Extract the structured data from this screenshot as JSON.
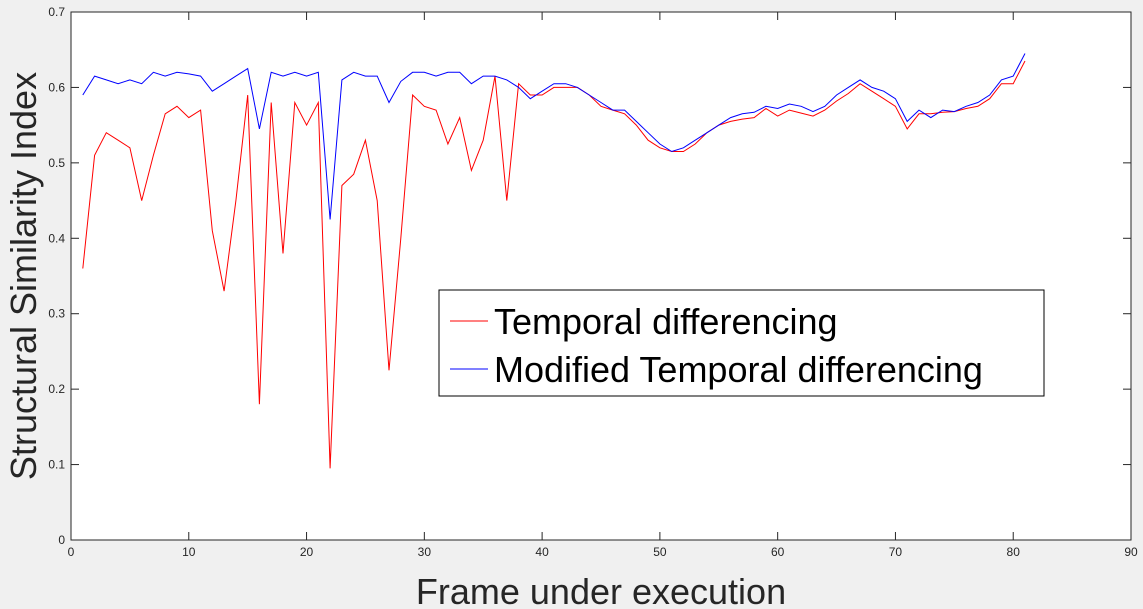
{
  "chart_data": {
    "type": "line",
    "title": "",
    "xlabel": "Frame under execution",
    "ylabel": "Structural Similarity Index",
    "xlim": [
      0,
      90
    ],
    "ylim": [
      0,
      0.7
    ],
    "xticks": [
      0,
      10,
      20,
      30,
      40,
      50,
      60,
      70,
      80,
      90
    ],
    "yticks": [
      0,
      0.1,
      0.2,
      0.3,
      0.4,
      0.5,
      0.6,
      0.7
    ],
    "xtick_labels": [
      "0",
      "10",
      "20",
      "30",
      "40",
      "50",
      "60",
      "70",
      "80",
      "90"
    ],
    "ytick_labels": [
      "0",
      "0.1",
      "0.2",
      "0.3",
      "0.4",
      "0.5",
      "0.6",
      "0.7"
    ],
    "grid": false,
    "legend_position": "center-right",
    "series": [
      {
        "name": "Temporal differencing",
        "color": "#ff0000",
        "x": [
          1,
          2,
          3,
          4,
          5,
          6,
          7,
          8,
          9,
          10,
          11,
          12,
          13,
          14,
          15,
          16,
          17,
          18,
          19,
          20,
          21,
          22,
          23,
          24,
          25,
          26,
          27,
          28,
          29,
          30,
          31,
          32,
          33,
          34,
          35,
          36,
          37,
          38,
          39,
          40,
          41,
          42,
          43,
          44,
          45,
          46,
          47,
          48,
          49,
          50,
          51,
          52,
          53,
          54,
          55,
          56,
          57,
          58,
          59,
          60,
          61,
          62,
          63,
          64,
          65,
          66,
          67,
          68,
          69,
          70,
          71,
          72,
          73,
          74,
          75,
          76,
          77,
          78,
          79,
          80,
          81
        ],
        "values": [
          0.36,
          0.51,
          0.54,
          0.53,
          0.52,
          0.45,
          0.51,
          0.565,
          0.575,
          0.56,
          0.57,
          0.41,
          0.33,
          0.45,
          0.59,
          0.18,
          0.58,
          0.38,
          0.58,
          0.55,
          0.58,
          0.095,
          0.47,
          0.485,
          0.53,
          0.45,
          0.225,
          0.4,
          0.59,
          0.575,
          0.57,
          0.525,
          0.56,
          0.49,
          0.53,
          0.615,
          0.45,
          0.605,
          0.59,
          0.59,
          0.6,
          0.6,
          0.6,
          0.59,
          0.575,
          0.57,
          0.565,
          0.55,
          0.53,
          0.52,
          0.515,
          0.515,
          0.525,
          0.54,
          0.55,
          0.555,
          0.558,
          0.56,
          0.572,
          0.562,
          0.57,
          0.566,
          0.562,
          0.57,
          0.582,
          0.592,
          0.605,
          0.595,
          0.585,
          0.575,
          0.545,
          0.565,
          0.565,
          0.567,
          0.568,
          0.572,
          0.575,
          0.585,
          0.605,
          0.605,
          0.635
        ]
      },
      {
        "name": "Modified Temporal differencing",
        "color": "#0000ff",
        "x": [
          1,
          2,
          3,
          4,
          5,
          6,
          7,
          8,
          9,
          10,
          11,
          12,
          13,
          14,
          15,
          16,
          17,
          18,
          19,
          20,
          21,
          22,
          23,
          24,
          25,
          26,
          27,
          28,
          29,
          30,
          31,
          32,
          33,
          34,
          35,
          36,
          37,
          38,
          39,
          40,
          41,
          42,
          43,
          44,
          45,
          46,
          47,
          48,
          49,
          50,
          51,
          52,
          53,
          54,
          55,
          56,
          57,
          58,
          59,
          60,
          61,
          62,
          63,
          64,
          65,
          66,
          67,
          68,
          69,
          70,
          71,
          72,
          73,
          74,
          75,
          76,
          77,
          78,
          79,
          80,
          81
        ],
        "values": [
          0.59,
          0.615,
          0.61,
          0.605,
          0.61,
          0.605,
          0.62,
          0.615,
          0.62,
          0.618,
          0.615,
          0.595,
          0.605,
          0.615,
          0.625,
          0.545,
          0.62,
          0.615,
          0.62,
          0.615,
          0.62,
          0.425,
          0.61,
          0.62,
          0.615,
          0.615,
          0.58,
          0.608,
          0.62,
          0.62,
          0.615,
          0.62,
          0.62,
          0.605,
          0.615,
          0.615,
          0.61,
          0.6,
          0.585,
          0.595,
          0.605,
          0.605,
          0.6,
          0.59,
          0.58,
          0.57,
          0.57,
          0.555,
          0.54,
          0.525,
          0.515,
          0.52,
          0.53,
          0.54,
          0.55,
          0.56,
          0.565,
          0.567,
          0.575,
          0.572,
          0.578,
          0.575,
          0.568,
          0.575,
          0.59,
          0.6,
          0.61,
          0.6,
          0.595,
          0.585,
          0.555,
          0.57,
          0.56,
          0.57,
          0.568,
          0.575,
          0.58,
          0.59,
          0.61,
          0.615,
          0.645
        ]
      }
    ]
  }
}
